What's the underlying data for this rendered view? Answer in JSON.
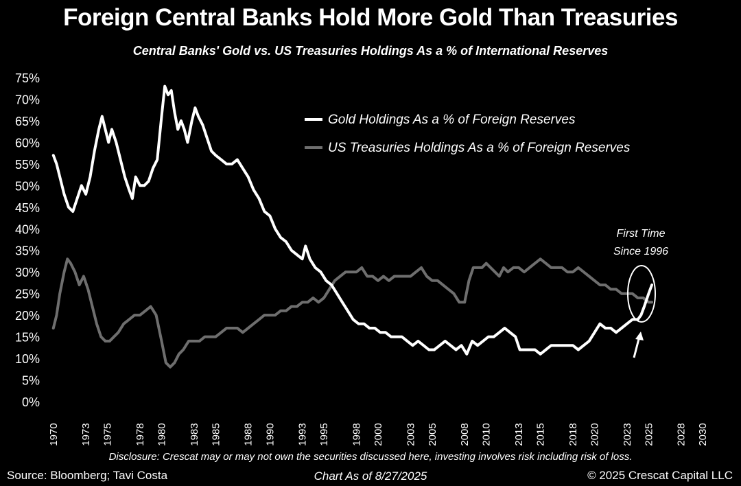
{
  "header": {
    "title": "Foreign Central Banks Hold More Gold Than Treasuries",
    "subtitle": "Central Banks' Gold vs. US Treasuries Holdings As a % of International Reserves"
  },
  "footer": {
    "disclosure": "Disclosure: Crescat may or may not own the securities discussed here, investing involves risk including risk of loss.",
    "source": "Source: Bloomberg; Tavi Costa",
    "chart_date": "Chart As of 8/27/2025",
    "copyright": "© 2025 Crescat Capital LLC"
  },
  "annotation": {
    "line1": "First Time",
    "line2": "Since 1996"
  },
  "colors": {
    "background": "#000000",
    "gold_series": "#ffffff",
    "treasury_series": "#6e6e6e",
    "text": "#ffffff"
  },
  "chart_data": {
    "type": "line",
    "title": "Foreign Central Banks Hold More Gold Than Treasuries",
    "subtitle": "Central Banks' Gold vs. US Treasuries Holdings As a % of International Reserves",
    "xlabel": "",
    "ylabel": "",
    "xlim": [
      1969,
      2031
    ],
    "ylim": [
      0,
      75
    ],
    "x_ticks": [
      1970,
      1973,
      1975,
      1978,
      1980,
      1983,
      1985,
      1988,
      1990,
      1993,
      1995,
      1998,
      2000,
      2003,
      2005,
      2008,
      2010,
      2013,
      2015,
      2018,
      2020,
      2023,
      2025,
      2028,
      2030
    ],
    "y_ticks": [
      0,
      5,
      10,
      15,
      20,
      25,
      30,
      35,
      40,
      45,
      50,
      55,
      60,
      65,
      70,
      75
    ],
    "y_tick_labels": [
      "0%",
      "5%",
      "10%",
      "15%",
      "20%",
      "25%",
      "30%",
      "35%",
      "40%",
      "45%",
      "50%",
      "55%",
      "60%",
      "65%",
      "70%",
      "75%"
    ],
    "grid": false,
    "legend_position": "top-right",
    "series": [
      {
        "name": "Gold Holdings As a % of Foreign Reserves",
        "color": "#ffffff",
        "points": [
          [
            1970.0,
            57
          ],
          [
            1970.3,
            55
          ],
          [
            1970.6,
            52
          ],
          [
            1971.0,
            48
          ],
          [
            1971.4,
            45
          ],
          [
            1971.8,
            44
          ],
          [
            1972.2,
            47
          ],
          [
            1972.6,
            50
          ],
          [
            1973.0,
            48
          ],
          [
            1973.4,
            52
          ],
          [
            1973.8,
            58
          ],
          [
            1974.2,
            63
          ],
          [
            1974.5,
            66
          ],
          [
            1974.8,
            63
          ],
          [
            1975.1,
            60
          ],
          [
            1975.4,
            63
          ],
          [
            1975.8,
            60
          ],
          [
            1976.2,
            56
          ],
          [
            1976.6,
            52
          ],
          [
            1977.0,
            49
          ],
          [
            1977.3,
            47
          ],
          [
            1977.6,
            52
          ],
          [
            1978.0,
            50
          ],
          [
            1978.4,
            50
          ],
          [
            1978.8,
            51
          ],
          [
            1979.2,
            54
          ],
          [
            1979.6,
            56
          ],
          [
            1980.0,
            66
          ],
          [
            1980.3,
            73
          ],
          [
            1980.6,
            71
          ],
          [
            1980.9,
            72
          ],
          [
            1981.2,
            67
          ],
          [
            1981.5,
            63
          ],
          [
            1981.8,
            65
          ],
          [
            1982.1,
            63
          ],
          [
            1982.4,
            60
          ],
          [
            1982.8,
            65
          ],
          [
            1983.1,
            68
          ],
          [
            1983.4,
            66
          ],
          [
            1983.8,
            64
          ],
          [
            1984.2,
            61
          ],
          [
            1984.6,
            58
          ],
          [
            1985.0,
            57
          ],
          [
            1985.5,
            56
          ],
          [
            1986.0,
            55
          ],
          [
            1986.5,
            55
          ],
          [
            1987.0,
            56
          ],
          [
            1987.5,
            54
          ],
          [
            1988.0,
            52
          ],
          [
            1988.5,
            49
          ],
          [
            1989.0,
            47
          ],
          [
            1989.5,
            44
          ],
          [
            1990.0,
            43
          ],
          [
            1990.5,
            40
          ],
          [
            1991.0,
            38
          ],
          [
            1991.5,
            37
          ],
          [
            1992.0,
            35
          ],
          [
            1992.5,
            34
          ],
          [
            1993.0,
            33
          ],
          [
            1993.3,
            36
          ],
          [
            1993.7,
            33
          ],
          [
            1994.2,
            31
          ],
          [
            1994.7,
            30
          ],
          [
            1995.2,
            28
          ],
          [
            1995.7,
            27
          ],
          [
            1996.2,
            25
          ],
          [
            1996.7,
            23
          ],
          [
            1997.2,
            21
          ],
          [
            1997.7,
            19
          ],
          [
            1998.2,
            18
          ],
          [
            1998.7,
            18
          ],
          [
            1999.2,
            17
          ],
          [
            1999.7,
            17
          ],
          [
            2000.2,
            16
          ],
          [
            2000.7,
            16
          ],
          [
            2001.2,
            15
          ],
          [
            2001.7,
            15
          ],
          [
            2002.2,
            15
          ],
          [
            2002.7,
            14
          ],
          [
            2003.2,
            13
          ],
          [
            2003.7,
            14
          ],
          [
            2004.2,
            13
          ],
          [
            2004.7,
            12
          ],
          [
            2005.2,
            12
          ],
          [
            2005.7,
            13
          ],
          [
            2006.2,
            14
          ],
          [
            2006.7,
            13
          ],
          [
            2007.2,
            12
          ],
          [
            2007.7,
            13
          ],
          [
            2008.2,
            11
          ],
          [
            2008.7,
            14
          ],
          [
            2009.2,
            13
          ],
          [
            2009.7,
            14
          ],
          [
            2010.2,
            15
          ],
          [
            2010.7,
            15
          ],
          [
            2011.2,
            16
          ],
          [
            2011.7,
            17
          ],
          [
            2012.2,
            16
          ],
          [
            2012.7,
            15
          ],
          [
            2013.1,
            12
          ],
          [
            2013.5,
            12
          ],
          [
            2014.0,
            12
          ],
          [
            2014.5,
            12
          ],
          [
            2015.0,
            11
          ],
          [
            2015.5,
            12
          ],
          [
            2016.0,
            13
          ],
          [
            2016.5,
            13
          ],
          [
            2017.0,
            13
          ],
          [
            2017.5,
            13
          ],
          [
            2018.0,
            13
          ],
          [
            2018.5,
            12
          ],
          [
            2019.0,
            13
          ],
          [
            2019.5,
            14
          ],
          [
            2020.0,
            16
          ],
          [
            2020.5,
            18
          ],
          [
            2021.0,
            17
          ],
          [
            2021.5,
            17
          ],
          [
            2022.0,
            16
          ],
          [
            2022.5,
            17
          ],
          [
            2023.0,
            18
          ],
          [
            2023.5,
            19
          ],
          [
            2024.0,
            19
          ],
          [
            2024.3,
            20
          ],
          [
            2024.6,
            22
          ],
          [
            2025.0,
            25
          ],
          [
            2025.3,
            27
          ]
        ]
      },
      {
        "name": "US Treasuries Holdings As a % of Foreign Reserves",
        "color": "#6e6e6e",
        "points": [
          [
            1970.0,
            17
          ],
          [
            1970.3,
            20
          ],
          [
            1970.6,
            25
          ],
          [
            1971.0,
            30
          ],
          [
            1971.3,
            33
          ],
          [
            1971.6,
            32
          ],
          [
            1972.0,
            30
          ],
          [
            1972.4,
            27
          ],
          [
            1972.8,
            29
          ],
          [
            1973.2,
            26
          ],
          [
            1973.6,
            22
          ],
          [
            1974.0,
            18
          ],
          [
            1974.4,
            15
          ],
          [
            1974.8,
            14
          ],
          [
            1975.2,
            14
          ],
          [
            1975.6,
            15
          ],
          [
            1976.0,
            16
          ],
          [
            1976.5,
            18
          ],
          [
            1977.0,
            19
          ],
          [
            1977.5,
            20
          ],
          [
            1978.0,
            20
          ],
          [
            1978.5,
            21
          ],
          [
            1979.0,
            22
          ],
          [
            1979.5,
            20
          ],
          [
            1980.0,
            14
          ],
          [
            1980.4,
            9
          ],
          [
            1980.8,
            8
          ],
          [
            1981.2,
            9
          ],
          [
            1981.6,
            11
          ],
          [
            1982.0,
            12
          ],
          [
            1982.5,
            14
          ],
          [
            1983.0,
            14
          ],
          [
            1983.5,
            14
          ],
          [
            1984.0,
            15
          ],
          [
            1984.5,
            15
          ],
          [
            1985.0,
            15
          ],
          [
            1985.5,
            16
          ],
          [
            1986.0,
            17
          ],
          [
            1986.5,
            17
          ],
          [
            1987.0,
            17
          ],
          [
            1987.5,
            16
          ],
          [
            1988.0,
            17
          ],
          [
            1988.5,
            18
          ],
          [
            1989.0,
            19
          ],
          [
            1989.5,
            20
          ],
          [
            1990.0,
            20
          ],
          [
            1990.5,
            20
          ],
          [
            1991.0,
            21
          ],
          [
            1991.5,
            21
          ],
          [
            1992.0,
            22
          ],
          [
            1992.5,
            22
          ],
          [
            1993.0,
            23
          ],
          [
            1993.5,
            23
          ],
          [
            1994.0,
            24
          ],
          [
            1994.5,
            23
          ],
          [
            1995.0,
            24
          ],
          [
            1995.5,
            26
          ],
          [
            1996.0,
            28
          ],
          [
            1996.5,
            29
          ],
          [
            1997.0,
            30
          ],
          [
            1997.5,
            30
          ],
          [
            1998.0,
            30
          ],
          [
            1998.5,
            31
          ],
          [
            1999.0,
            29
          ],
          [
            1999.5,
            29
          ],
          [
            2000.0,
            28
          ],
          [
            2000.5,
            29
          ],
          [
            2001.0,
            28
          ],
          [
            2001.5,
            29
          ],
          [
            2002.0,
            29
          ],
          [
            2002.5,
            29
          ],
          [
            2003.0,
            29
          ],
          [
            2003.5,
            30
          ],
          [
            2004.0,
            31
          ],
          [
            2004.5,
            29
          ],
          [
            2005.0,
            28
          ],
          [
            2005.5,
            28
          ],
          [
            2006.0,
            27
          ],
          [
            2006.5,
            26
          ],
          [
            2007.0,
            25
          ],
          [
            2007.5,
            23
          ],
          [
            2008.0,
            23
          ],
          [
            2008.4,
            28
          ],
          [
            2008.8,
            31
          ],
          [
            2009.2,
            31
          ],
          [
            2009.6,
            31
          ],
          [
            2010.0,
            32
          ],
          [
            2010.4,
            31
          ],
          [
            2010.8,
            30
          ],
          [
            2011.2,
            29
          ],
          [
            2011.6,
            31
          ],
          [
            2012.0,
            30
          ],
          [
            2012.5,
            31
          ],
          [
            2013.0,
            31
          ],
          [
            2013.5,
            30
          ],
          [
            2014.0,
            31
          ],
          [
            2014.5,
            32
          ],
          [
            2015.0,
            33
          ],
          [
            2015.5,
            32
          ],
          [
            2016.0,
            31
          ],
          [
            2016.5,
            31
          ],
          [
            2017.0,
            31
          ],
          [
            2017.5,
            30
          ],
          [
            2018.0,
            30
          ],
          [
            2018.5,
            31
          ],
          [
            2019.0,
            30
          ],
          [
            2019.5,
            29
          ],
          [
            2020.0,
            28
          ],
          [
            2020.5,
            27
          ],
          [
            2021.0,
            27
          ],
          [
            2021.5,
            26
          ],
          [
            2022.0,
            26
          ],
          [
            2022.5,
            25
          ],
          [
            2023.0,
            25
          ],
          [
            2023.5,
            25
          ],
          [
            2024.0,
            24
          ],
          [
            2024.5,
            24
          ],
          [
            2025.0,
            23
          ],
          [
            2025.3,
            23
          ]
        ]
      }
    ]
  }
}
